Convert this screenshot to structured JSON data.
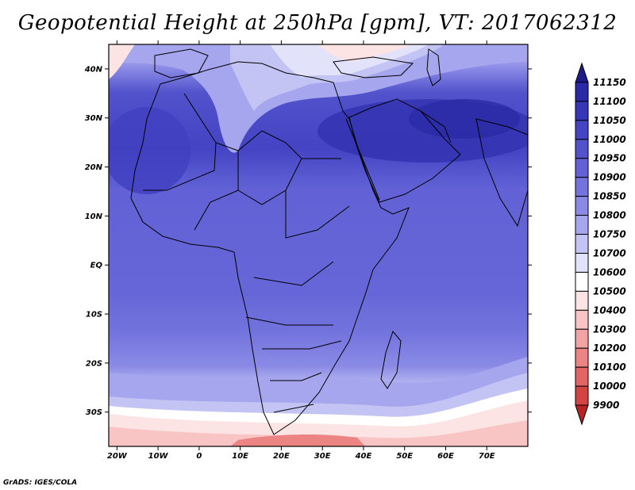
{
  "title": "Geopotential Height at 250hPa [gpm], VT: 2017062312",
  "credit": "GrADS: IGES/COLA",
  "lat_labels": [
    "40N",
    "30N",
    "20N",
    "10N",
    "EQ",
    "10S",
    "20S",
    "30S"
  ],
  "lat_values": [
    40,
    30,
    20,
    10,
    0,
    -10,
    -20,
    -30
  ],
  "lon_labels": [
    "20W",
    "10W",
    "0",
    "10E",
    "20E",
    "30E",
    "40E",
    "50E",
    "60E",
    "70E"
  ],
  "lon_values": [
    -20,
    -10,
    0,
    10,
    20,
    30,
    40,
    50,
    60,
    70
  ],
  "extent": {
    "lon_min": -22,
    "lon_max": 80,
    "lat_min": -37,
    "lat_max": 45
  },
  "colorbar": {
    "levels": [
      "11150",
      "11100",
      "11050",
      "11000",
      "10950",
      "10900",
      "10850",
      "10800",
      "10750",
      "10700",
      "10600",
      "10500",
      "10400",
      "10300",
      "10200",
      "10100",
      "10000",
      "9900"
    ],
    "colors": [
      "#1e1a8a",
      "#2a2aa6",
      "#3636b8",
      "#4444c4",
      "#5252cc",
      "#6262d6",
      "#7474de",
      "#8a8ae6",
      "#a6a6ee",
      "#c4c4f4",
      "#e2e2fa",
      "#ffffff",
      "#fde4e4",
      "#f8c4c4",
      "#f2a4a4",
      "#ec8484",
      "#e26464",
      "#d44444",
      "#b82222"
    ]
  }
}
